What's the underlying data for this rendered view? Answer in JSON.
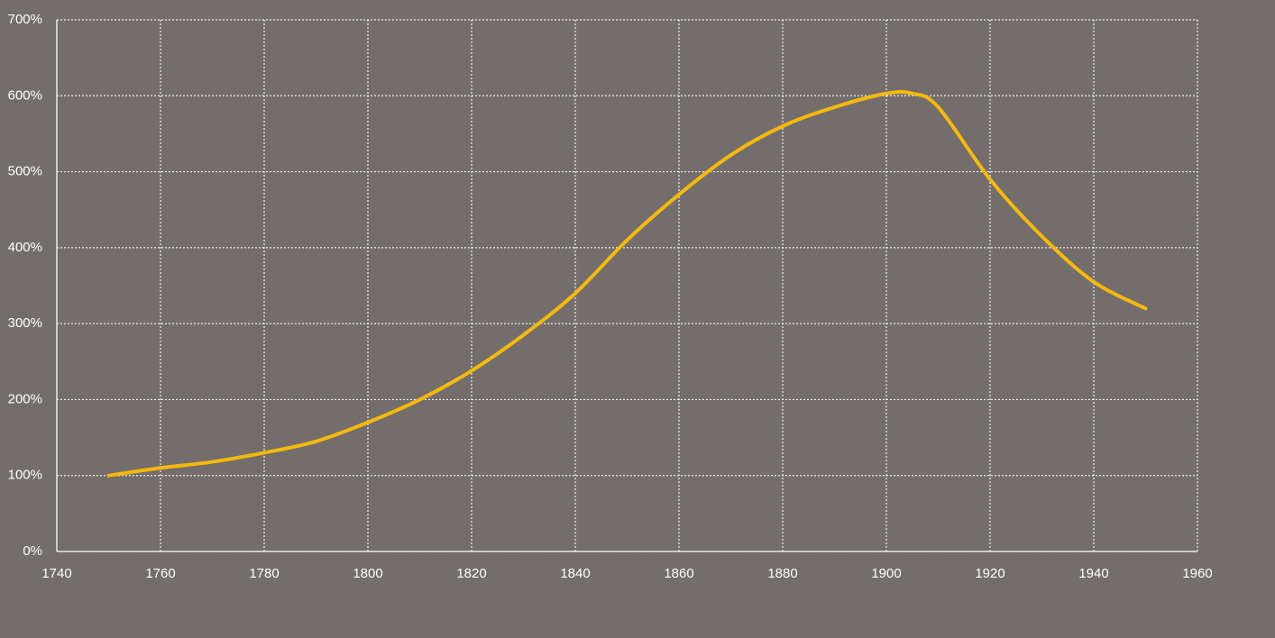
{
  "chart_data": {
    "type": "line",
    "x": [
      1750,
      1760,
      1770,
      1780,
      1790,
      1800,
      1810,
      1820,
      1830,
      1840,
      1850,
      1860,
      1870,
      1880,
      1890,
      1900,
      1905,
      1910,
      1920,
      1930,
      1940,
      1950
    ],
    "series": [
      {
        "color": "#f5b90e",
        "values": [
          100,
          110,
          118,
          130,
          145,
          170,
          200,
          238,
          285,
          340,
          410,
          470,
          522,
          560,
          585,
          603,
          603,
          585,
          490,
          415,
          355,
          320
        ]
      }
    ],
    "xlim": [
      1740,
      1960
    ],
    "xticks": [
      1740,
      1760,
      1780,
      1800,
      1820,
      1840,
      1860,
      1880,
      1900,
      1920,
      1940,
      1960
    ],
    "ylim": [
      0,
      700
    ],
    "yticks": [
      {
        "value": 0,
        "label": "0%"
      },
      {
        "value": 100,
        "label": "100%"
      },
      {
        "value": 200,
        "label": "200%"
      },
      {
        "value": 300,
        "label": "300%"
      },
      {
        "value": 400,
        "label": "400%"
      },
      {
        "value": 500,
        "label": "500%"
      },
      {
        "value": 600,
        "label": "600%"
      },
      {
        "value": 700,
        "label": "700%"
      }
    ],
    "grid": true
  }
}
